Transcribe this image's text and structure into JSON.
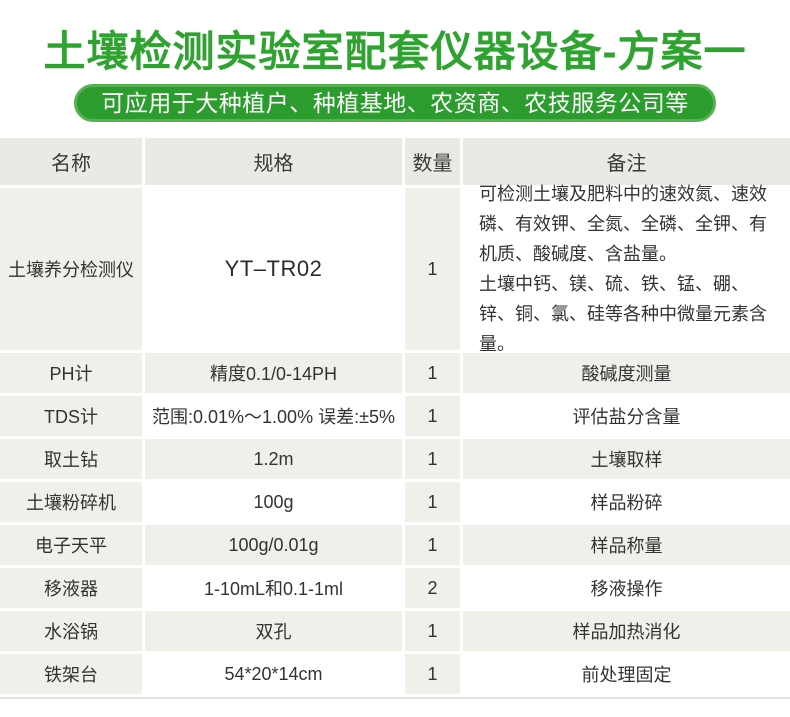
{
  "header": {
    "title": "土壤检测实验室配套仪器设备-方案一",
    "subtitle": "可应用于大种植户、种植基地、农资商、农技服务公司等"
  },
  "colors": {
    "title_green": "#2fa32f",
    "badge_background": "#2c9c2e",
    "badge_border": "#57b151",
    "table_header_background": "#e8ebe3",
    "row_tint_background": "#edf1e9"
  },
  "table": {
    "columns": [
      "名称",
      "规格",
      "数量",
      "备注"
    ],
    "rows": [
      {
        "name": "土壤养分检测仪",
        "spec": "YT–TR02",
        "qty": "1",
        "remark_line1": "可检测土壤及肥料中的速效氮、速效磷、有效钾、全氮、全磷、全钾、有机质、酸碱度、含盐量。",
        "remark_line2": "土壤中钙、镁、硫、铁、锰、硼、锌、铜、氯、硅等各种中微量元素含量。"
      },
      {
        "name": "PH计",
        "spec": "精度0.1/0-14PH",
        "qty": "1",
        "remark": "酸碱度测量"
      },
      {
        "name": "TDS计",
        "spec": "范围:0.01%～1.00% 误差:±5%",
        "qty": "1",
        "remark": "评估盐分含量"
      },
      {
        "name": "取土钻",
        "spec": "1.2m",
        "qty": "1",
        "remark": "土壤取样"
      },
      {
        "name": "土壤粉碎机",
        "spec": "100g",
        "qty": "1",
        "remark": "样品粉碎"
      },
      {
        "name": "电子天平",
        "spec": "100g/0.01g",
        "qty": "1",
        "remark": "样品称量"
      },
      {
        "name": "移液器",
        "spec": "1-10mL和0.1-1ml",
        "qty": "2",
        "remark": "移液操作"
      },
      {
        "name": "水浴锅",
        "spec": "双孔",
        "qty": "1",
        "remark": "样品加热消化"
      },
      {
        "name": "铁架台",
        "spec": "54*20*14cm",
        "qty": "1",
        "remark": "前处理固定"
      }
    ]
  }
}
